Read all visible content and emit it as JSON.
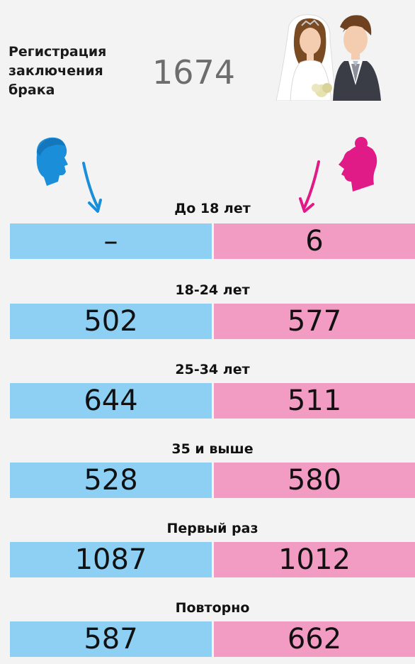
{
  "header": {
    "title": "Регистрация\nзаключения\nбрака",
    "total": "1674"
  },
  "icons": {
    "couple": "wedding-couple-icon",
    "male": "male-head-icon",
    "female": "female-head-icon"
  },
  "colors": {
    "male": "#8ed0f3",
    "female": "#f29cc4",
    "male_icon": "#1a8ed8",
    "female_icon": "#e01a86",
    "background": "#f3f3f3"
  },
  "rows": [
    {
      "label": "До 18 лет",
      "male": "–",
      "female": "6"
    },
    {
      "label": "18-24 лет",
      "male": "502",
      "female": "577"
    },
    {
      "label": "25-34 лет",
      "male": "644",
      "female": "511"
    },
    {
      "label": "35 и выше",
      "male": "528",
      "female": "580"
    },
    {
      "label": "Первый раз",
      "male": "1087",
      "female": "1012"
    },
    {
      "label": "Повторно",
      "male": "587",
      "female": "662"
    }
  ]
}
